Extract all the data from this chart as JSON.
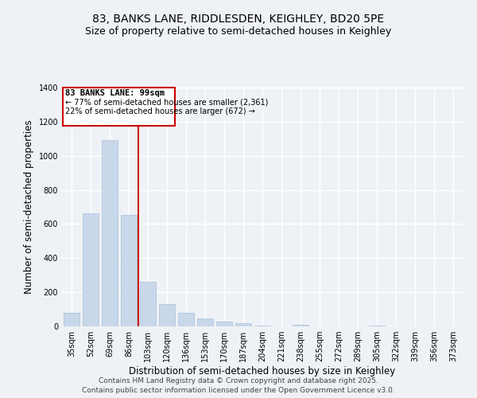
{
  "title1": "83, BANKS LANE, RIDDLESDEN, KEIGHLEY, BD20 5PE",
  "title2": "Size of property relative to semi-detached houses in Keighley",
  "xlabel": "Distribution of semi-detached houses by size in Keighley",
  "ylabel": "Number of semi-detached properties",
  "bar_color": "#c8d8ea",
  "bar_edge_color": "#a8c0d4",
  "categories": [
    "35sqm",
    "52sqm",
    "69sqm",
    "86sqm",
    "103sqm",
    "120sqm",
    "136sqm",
    "153sqm",
    "170sqm",
    "187sqm",
    "204sqm",
    "221sqm",
    "238sqm",
    "255sqm",
    "272sqm",
    "289sqm",
    "305sqm",
    "322sqm",
    "339sqm",
    "356sqm",
    "373sqm"
  ],
  "values": [
    80,
    665,
    1090,
    655,
    260,
    130,
    80,
    45,
    30,
    20,
    5,
    2,
    8,
    2,
    2,
    1,
    5,
    1,
    2,
    1,
    1
  ],
  "property_label": "83 BANKS LANE: 99sqm",
  "annotation_line1": "← 77% of semi-detached houses are smaller (2,361)",
  "annotation_line2": "22% of semi-detached houses are larger (672) →",
  "vline_pos": 3.5,
  "ylim": [
    0,
    1400
  ],
  "yticks": [
    0,
    200,
    400,
    600,
    800,
    1000,
    1200,
    1400
  ],
  "footnote1": "Contains HM Land Registry data © Crown copyright and database right 2025.",
  "footnote2": "Contains public sector information licensed under the Open Government Licence v3.0.",
  "bg_color": "#eef2f6",
  "plot_bg_color": "#eef2f6",
  "grid_color": "#ffffff",
  "vline_color": "#cc0000",
  "box_color": "#cc0000",
  "title_fontsize": 10,
  "subtitle_fontsize": 9,
  "tick_fontsize": 7,
  "label_fontsize": 8.5,
  "footnote_fontsize": 6.5
}
